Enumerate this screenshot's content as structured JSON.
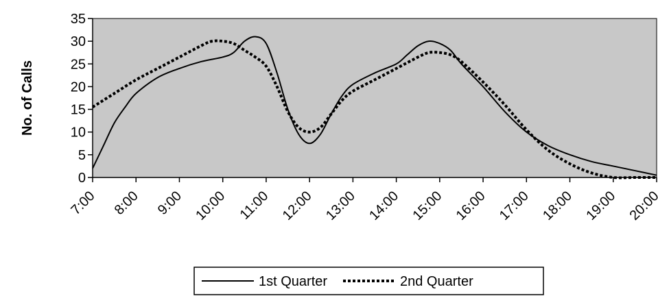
{
  "chart_data": {
    "type": "line",
    "title": "",
    "xlabel": "",
    "ylabel": "No. of Calls",
    "x": [
      "7:00",
      "8:00",
      "9:00",
      "10:00",
      "11:00",
      "12:00",
      "13:00",
      "14:00",
      "15:00",
      "16:00",
      "17:00",
      "18:00",
      "19:00",
      "20:00"
    ],
    "ylim": [
      0,
      35
    ],
    "yticks": [
      0,
      5,
      10,
      15,
      20,
      25,
      30,
      35
    ],
    "grid": false,
    "legend_position": "bottom-center",
    "plot_background": "#c8c8c8",
    "series": [
      {
        "name": "1st Quarter",
        "style": "solid",
        "color": "#000000",
        "points": [
          [
            7.0,
            2
          ],
          [
            7.25,
            7
          ],
          [
            7.5,
            12
          ],
          [
            7.75,
            15.5
          ],
          [
            8.0,
            18.5
          ],
          [
            8.5,
            22
          ],
          [
            9.0,
            24
          ],
          [
            9.5,
            25.5
          ],
          [
            10.0,
            26.5
          ],
          [
            10.25,
            27.5
          ],
          [
            10.5,
            30
          ],
          [
            10.75,
            31
          ],
          [
            11.0,
            29.5
          ],
          [
            11.25,
            23
          ],
          [
            11.5,
            15
          ],
          [
            11.75,
            9.5
          ],
          [
            12.0,
            7.5
          ],
          [
            12.25,
            9.5
          ],
          [
            12.5,
            14
          ],
          [
            12.75,
            18
          ],
          [
            13.0,
            20.5
          ],
          [
            13.5,
            23
          ],
          [
            14.0,
            25
          ],
          [
            14.25,
            27
          ],
          [
            14.5,
            29
          ],
          [
            14.75,
            30
          ],
          [
            15.0,
            29.5
          ],
          [
            15.25,
            28
          ],
          [
            15.5,
            25
          ],
          [
            16.0,
            20
          ],
          [
            16.5,
            14.5
          ],
          [
            17.0,
            10
          ],
          [
            17.5,
            7
          ],
          [
            18.0,
            5
          ],
          [
            18.5,
            3.5
          ],
          [
            19.0,
            2.5
          ],
          [
            19.5,
            1.5
          ],
          [
            20.0,
            0.5
          ]
        ]
      },
      {
        "name": "2nd Quarter",
        "style": "dotted",
        "color": "#000000",
        "points": [
          [
            7.0,
            15.5
          ],
          [
            7.5,
            18.5
          ],
          [
            8.0,
            21.5
          ],
          [
            8.5,
            24
          ],
          [
            9.0,
            26.5
          ],
          [
            9.5,
            29
          ],
          [
            9.75,
            30
          ],
          [
            10.0,
            30
          ],
          [
            10.25,
            29.5
          ],
          [
            10.5,
            28
          ],
          [
            10.75,
            26.5
          ],
          [
            11.0,
            24.5
          ],
          [
            11.25,
            20
          ],
          [
            11.5,
            14.5
          ],
          [
            11.75,
            11
          ],
          [
            12.0,
            10
          ],
          [
            12.25,
            11
          ],
          [
            12.5,
            14
          ],
          [
            12.75,
            17
          ],
          [
            13.0,
            19
          ],
          [
            13.5,
            21.5
          ],
          [
            14.0,
            24
          ],
          [
            14.5,
            26.5
          ],
          [
            14.75,
            27.5
          ],
          [
            15.0,
            27.5
          ],
          [
            15.25,
            27
          ],
          [
            15.5,
            25.5
          ],
          [
            16.0,
            21
          ],
          [
            16.5,
            16
          ],
          [
            17.0,
            10.5
          ],
          [
            17.5,
            6
          ],
          [
            18.0,
            3
          ],
          [
            18.5,
            1
          ],
          [
            19.0,
            0
          ],
          [
            19.5,
            0
          ],
          [
            20.0,
            0
          ]
        ]
      }
    ]
  }
}
